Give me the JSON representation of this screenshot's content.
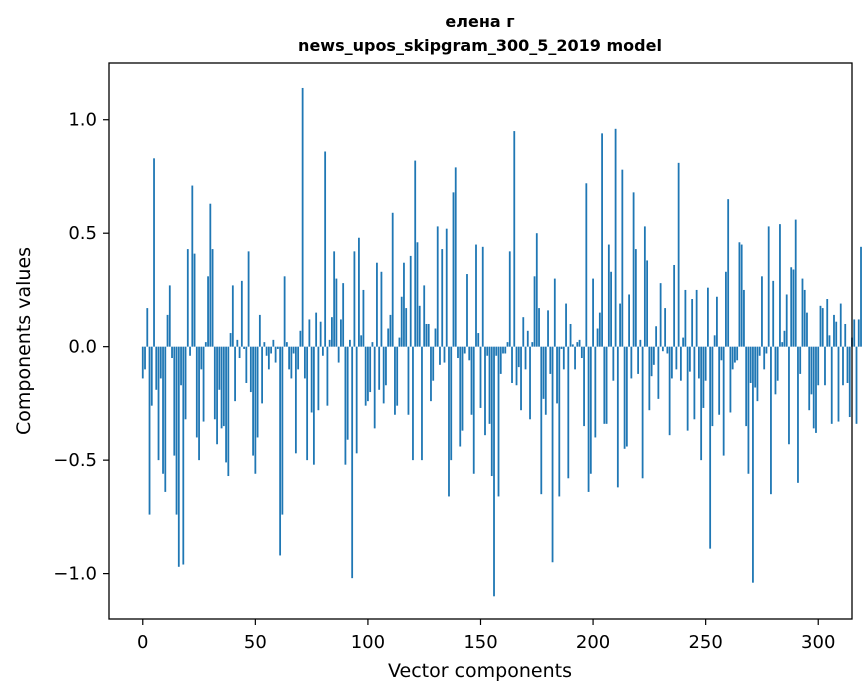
{
  "chart_data": {
    "type": "bar",
    "title_line1": "елена г",
    "title_line2": "news_upos_skipgram_300_5_2019 model",
    "xlabel": "Vector components",
    "ylabel": "Components values",
    "xlim": [
      -15,
      315
    ],
    "ylim": [
      -1.2,
      1.25
    ],
    "xticks": [
      0,
      50,
      100,
      150,
      200,
      250,
      300
    ],
    "yticks": [
      -1.0,
      -0.5,
      0.0,
      0.5,
      1.0
    ],
    "ytick_labels": [
      "−1.0",
      "−0.5",
      "0.0",
      "0.5",
      "1.0"
    ],
    "bar_color": "#1f77b4",
    "grid": false,
    "values": [
      -0.14,
      -0.1,
      0.17,
      -0.74,
      -0.26,
      0.83,
      -0.19,
      -0.5,
      -0.14,
      -0.56,
      -0.64,
      0.14,
      0.27,
      -0.05,
      -0.48,
      -0.74,
      -0.97,
      -0.17,
      -0.96,
      -0.32,
      0.43,
      -0.04,
      0.71,
      0.41,
      -0.4,
      -0.5,
      -0.1,
      -0.33,
      0.02,
      0.31,
      0.63,
      0.43,
      -0.32,
      -0.43,
      -0.19,
      -0.36,
      -0.35,
      -0.51,
      -0.57,
      0.06,
      0.27,
      -0.24,
      0.03,
      -0.05,
      0.29,
      -0.01,
      -0.16,
      0.42,
      -0.2,
      -0.48,
      -0.56,
      -0.4,
      0.14,
      -0.25,
      0.02,
      -0.04,
      -0.1,
      -0.03,
      0.03,
      -0.07,
      -0.01,
      -0.92,
      -0.74,
      0.31,
      0.02,
      -0.1,
      -0.14,
      -0.03,
      -0.47,
      -0.1,
      0.07,
      1.14,
      -0.14,
      -0.5,
      0.12,
      -0.29,
      -0.52,
      0.15,
      -0.28,
      0.11,
      -0.04,
      0.86,
      -0.26,
      0.03,
      0.13,
      0.42,
      0.3,
      -0.07,
      0.12,
      0.28,
      -0.52,
      -0.41,
      0.03,
      -1.02,
      0.42,
      -0.47,
      0.48,
      0.05,
      0.25,
      -0.26,
      -0.24,
      -0.2,
      0.02,
      -0.36,
      0.37,
      -0.19,
      0.33,
      -0.25,
      -0.17,
      0.08,
      0.14,
      0.59,
      -0.3,
      -0.26,
      0.04,
      0.22,
      0.37,
      0.17,
      -0.3,
      0.4,
      -0.5,
      0.82,
      0.46,
      0.18,
      -0.5,
      0.27,
      0.1,
      0.1,
      -0.24,
      -0.15,
      0.08,
      0.53,
      -0.08,
      0.43,
      -0.07,
      0.52,
      -0.66,
      -0.5,
      0.68,
      0.79,
      -0.05,
      -0.44,
      -0.37,
      -0.03,
      0.32,
      -0.06,
      -0.3,
      -0.56,
      0.45,
      0.06,
      -0.27,
      0.44,
      -0.39,
      -0.04,
      -0.34,
      -0.57,
      -1.1,
      -0.04,
      -0.66,
      -0.12,
      -0.03,
      -0.03,
      0.02,
      0.42,
      -0.16,
      0.95,
      -0.17,
      -0.09,
      -0.28,
      0.13,
      -0.1,
      0.07,
      -0.32,
      0.02,
      0.31,
      0.5,
      0.17,
      -0.65,
      -0.23,
      -0.3,
      0.16,
      -0.12,
      -0.95,
      0.3,
      -0.25,
      -0.66,
      -0.01,
      -0.1,
      0.19,
      -0.58,
      0.1,
      0.01,
      -0.1,
      0.02,
      0.03,
      -0.05,
      -0.35,
      0.72,
      -0.64,
      -0.56,
      0.3,
      -0.4,
      0.08,
      0.15,
      0.94,
      -0.34,
      -0.34,
      0.45,
      0.33,
      -0.15,
      0.96,
      -0.62,
      0.19,
      0.78,
      -0.45,
      -0.44,
      0.23,
      -0.14,
      0.68,
      0.43,
      -0.12,
      0.03,
      -0.58,
      0.53,
      0.38,
      -0.28,
      -0.13,
      -0.08,
      0.09,
      -0.23,
      0.28,
      -0.02,
      0.17,
      -0.03,
      -0.39,
      -0.14,
      0.36,
      -0.1,
      0.81,
      -0.15,
      0.04,
      0.25,
      -0.37,
      -0.11,
      0.21,
      -0.32,
      0.25,
      -0.14,
      -0.5,
      -0.27,
      -0.15,
      0.26,
      -0.89,
      -0.35,
      0.05,
      0.22,
      -0.3,
      -0.06,
      -0.48,
      0.33,
      0.65,
      -0.29,
      -0.1,
      -0.07,
      -0.06,
      0.46,
      0.45,
      0.25,
      -0.35,
      -0.56,
      -0.16,
      -1.04,
      -0.18,
      -0.24,
      -0.04,
      0.31,
      -0.1,
      -0.03,
      0.53,
      -0.65,
      0.29,
      -0.21,
      -0.15,
      0.54,
      0.02,
      0.07,
      0.23,
      -0.43,
      0.35,
      0.34,
      0.56,
      -0.6,
      -0.12,
      0.3,
      0.25,
      0.15,
      -0.28,
      -0.21,
      -0.36,
      -0.38,
      -0.17,
      0.18,
      0.17,
      -0.17,
      0.21,
      0.05,
      -0.34,
      0.14,
      0.11,
      -0.33,
      0.19,
      -0.17,
      0.1,
      -0.16,
      -0.31,
      0.04,
      0.12,
      -0.34,
      0.12,
      0.44
    ]
  }
}
